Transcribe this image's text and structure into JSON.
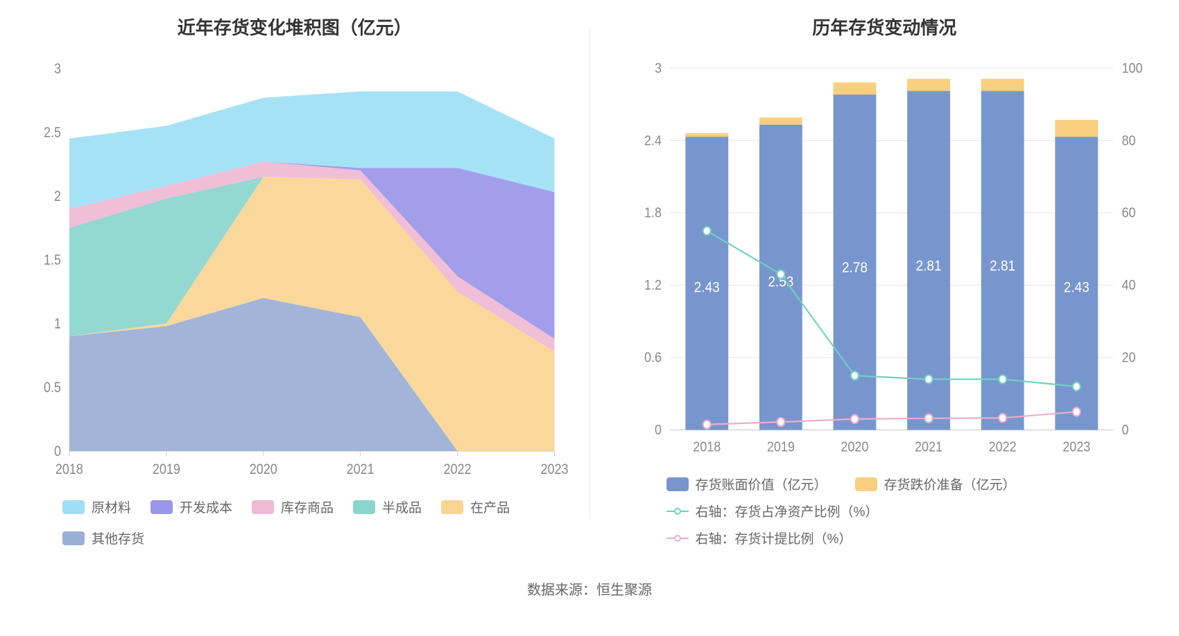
{
  "footer_text": "数据来源：恒生聚源",
  "left_chart": {
    "title": "近年存货变化堆积图（亿元）",
    "type": "stacked-area",
    "x_categories": [
      "2018",
      "2019",
      "2020",
      "2021",
      "2022",
      "2023"
    ],
    "ylim": [
      0,
      3
    ],
    "ytick_step": 0.5,
    "y_ticks": [
      "0",
      "0.5",
      "1",
      "1.5",
      "2",
      "2.5",
      "3"
    ],
    "series": [
      {
        "name": "其他存货",
        "color": "#9aafd6",
        "values": [
          0.9,
          0.98,
          1.2,
          1.05,
          0.0,
          0.0
        ]
      },
      {
        "name": "在产品",
        "color": "#fad493",
        "values": [
          0.0,
          0.02,
          0.95,
          1.08,
          1.25,
          0.78
        ]
      },
      {
        "name": "半成品",
        "color": "#8ad5cd",
        "values": [
          0.85,
          0.98,
          0.0,
          0.0,
          0.0,
          0.0
        ]
      },
      {
        "name": "库存商品",
        "color": "#efb8d4",
        "values": [
          0.15,
          0.1,
          0.12,
          0.07,
          0.12,
          0.1
        ]
      },
      {
        "name": "开发成本",
        "color": "#9a96e9",
        "values": [
          0.0,
          0.0,
          0.0,
          0.02,
          0.85,
          1.15
        ]
      },
      {
        "name": "原材料",
        "color": "#9edff5",
        "values": [
          0.55,
          0.47,
          0.5,
          0.6,
          0.6,
          0.42
        ]
      }
    ],
    "legend_order": [
      "原材料",
      "开发成本",
      "库存商品",
      "半成品",
      "在产品",
      "其他存货"
    ],
    "axis_color": "#888888",
    "axis_fontsize": 18,
    "split_line_color": "#e8e8e8",
    "background_color": "#ffffff"
  },
  "right_chart": {
    "title": "历年存货变动情况",
    "type": "bar+line-dual-axis",
    "x_categories": [
      "2018",
      "2019",
      "2020",
      "2021",
      "2022",
      "2023"
    ],
    "ylim_left": [
      0,
      3
    ],
    "ytick_left_step": 0.6,
    "y_ticks_left": [
      "0",
      "0.6",
      "1.2",
      "1.8",
      "2.4",
      "3"
    ],
    "ylim_right": [
      0,
      100
    ],
    "ytick_right_step": 20,
    "y_ticks_right": [
      "0",
      "20",
      "40",
      "60",
      "80",
      "100"
    ],
    "bar_width": 0.58,
    "bars": [
      {
        "name": "存货账面价值（亿元）",
        "color": "#7896ce",
        "values": [
          2.43,
          2.53,
          2.78,
          2.81,
          2.81,
          2.43
        ]
      },
      {
        "name": "存货跌价准备（亿元）",
        "color": "#f9cf7f",
        "values": [
          0.03,
          0.06,
          0.1,
          0.1,
          0.1,
          0.14
        ]
      }
    ],
    "bar_labels": [
      "2.43",
      "2.53",
      "2.78",
      "2.81",
      "2.81",
      "2.43"
    ],
    "lines": [
      {
        "name": "右轴：存货占净资产比例（%）",
        "color": "#6fd1c4",
        "values": [
          55,
          43,
          15,
          14,
          14,
          12
        ]
      },
      {
        "name": "右轴：存货计提比例（%）",
        "color": "#efaccb",
        "values": [
          1.5,
          2.2,
          3.0,
          3.2,
          3.3,
          5.0
        ]
      }
    ],
    "axis_color": "#888888",
    "axis_fontsize": 18,
    "split_line_color": "#e8e8e8",
    "background_color": "#ffffff",
    "label_fontsize": 19,
    "label_color": "#ffffff"
  }
}
